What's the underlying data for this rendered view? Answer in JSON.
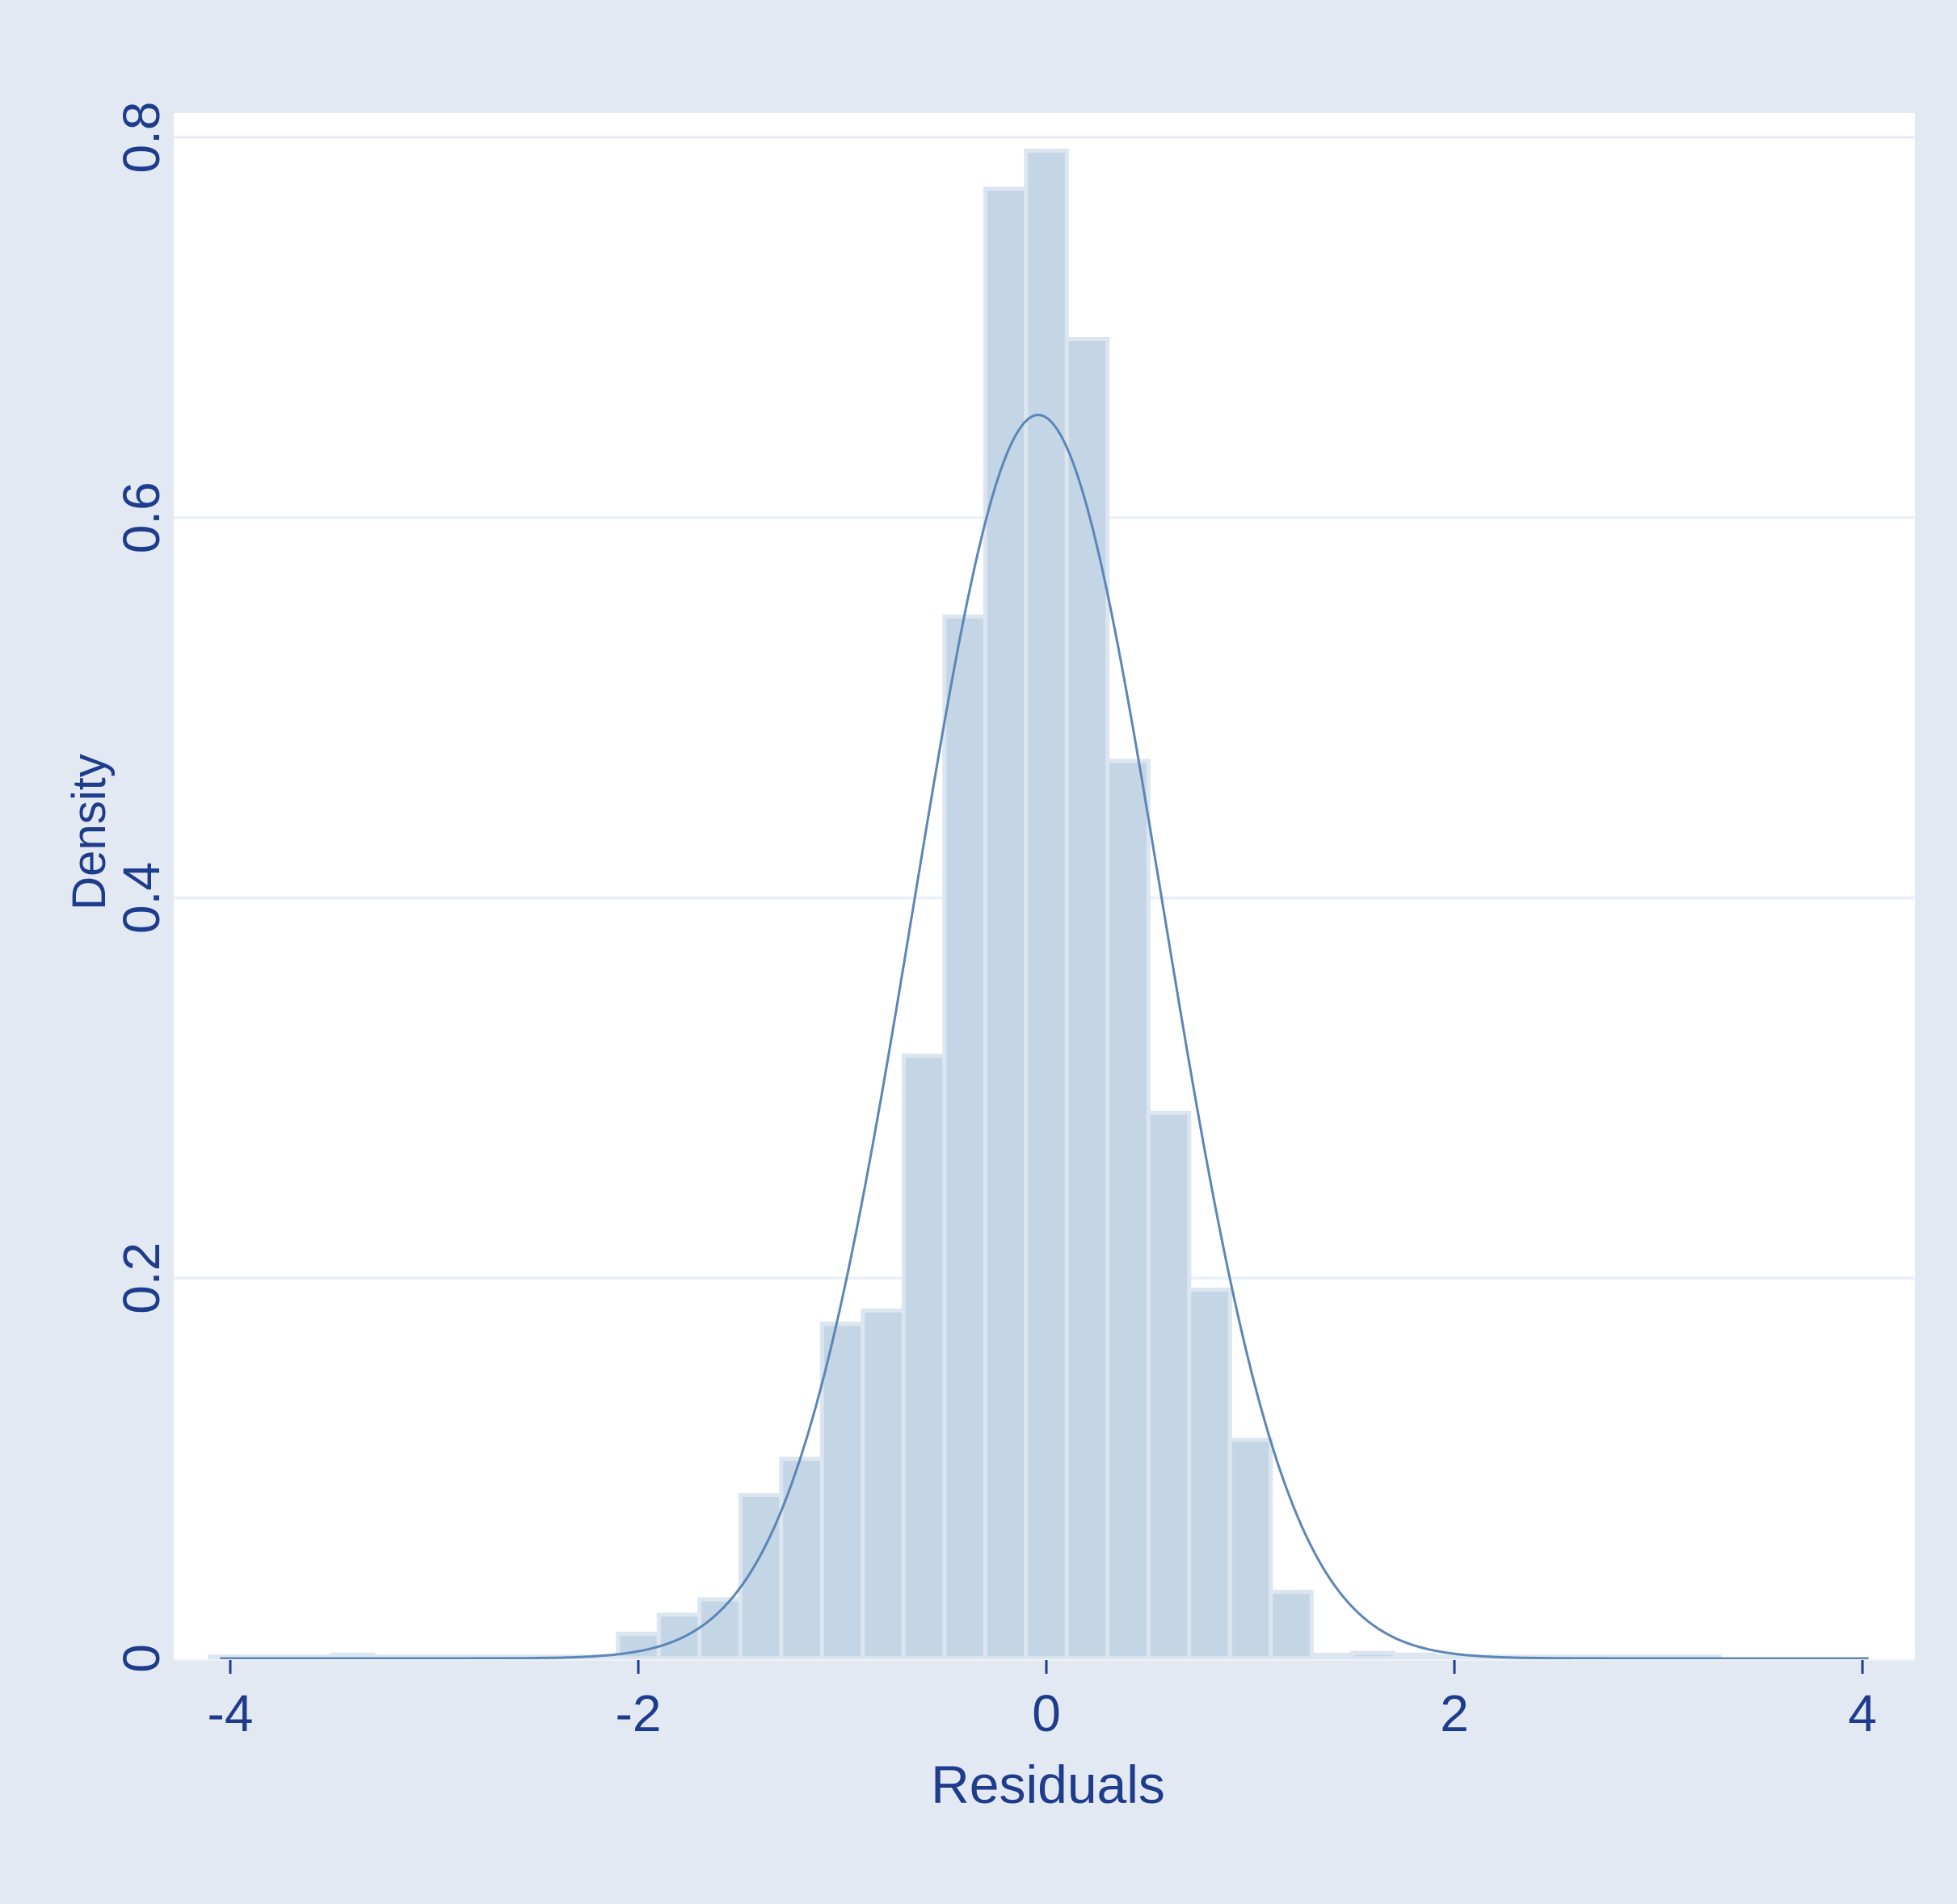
{
  "chart_data": {
    "type": "bar",
    "title": "",
    "xlabel": "Residuals",
    "ylabel": "Density",
    "xlim": [
      -4.1,
      4.15
    ],
    "ylim": [
      0,
      0.81
    ],
    "x_ticks": [
      "-4",
      "-2",
      "0",
      "2",
      "4"
    ],
    "y_ticks": [
      "0",
      "0.2",
      "0.4",
      "0.6",
      "0.8"
    ],
    "grid": true,
    "legend": "none",
    "bin_width": 0.2,
    "series": [
      {
        "type": "histogram",
        "bins_start": [
          -4.1,
          -3.9,
          -3.7,
          -3.5,
          -3.3,
          -3.1,
          -2.9,
          -2.7,
          -2.5,
          -2.3,
          -2.1,
          -1.9,
          -1.7,
          -1.5,
          -1.3,
          -1.1,
          -0.9,
          -0.7,
          -0.5,
          -0.3,
          -0.1,
          0.1,
          0.3,
          0.5,
          0.7,
          0.9,
          1.1,
          1.3,
          1.5,
          1.7,
          1.9,
          2.1,
          2.3,
          2.5,
          2.7,
          2.9,
          3.1
        ],
        "density": [
          0.001,
          0.001,
          0.001,
          0.002,
          0.001,
          0.001,
          0.001,
          0.001,
          0.001,
          0.001,
          0.013,
          0.023,
          0.031,
          0.086,
          0.105,
          0.176,
          0.183,
          0.317,
          0.548,
          0.773,
          0.793,
          0.694,
          0.472,
          0.287,
          0.194,
          0.115,
          0.035,
          0.002,
          0.003,
          0.002,
          0.001,
          0.001,
          0.001,
          0.001,
          0.001,
          0.001,
          0.001
        ]
      },
      {
        "type": "density_curve",
        "distribution": "normal",
        "mean": -0.04,
        "sd": 0.61
      }
    ]
  },
  "colors": {
    "outer_background": "#e3e9f2",
    "plot_background": "#ffffff",
    "bar_fill": "#c4d5e6",
    "bar_edge": "#dce6f0",
    "curve": "#5b86b5",
    "grid": "#eaf1f7",
    "text": "#1e3c8c"
  }
}
